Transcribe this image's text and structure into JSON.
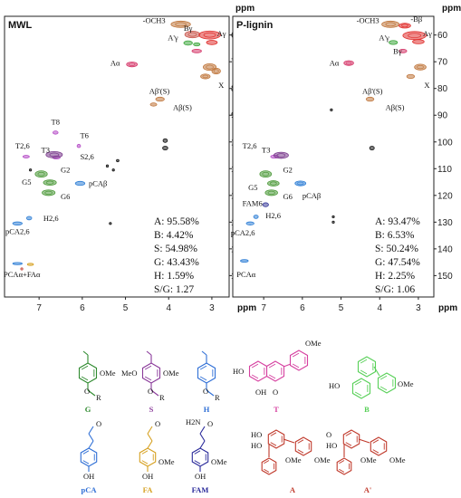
{
  "chart_data": [
    {
      "type": "scatter",
      "title": "MWL",
      "xlabel": "ppm",
      "ylabel": "ppm",
      "xlim": [
        7.8,
        2.6
      ],
      "ylim": [
        53,
        158
      ],
      "x_ticks": [
        "7",
        "6",
        "5",
        "4",
        "3"
      ],
      "y_ticks": [
        "60",
        "70",
        "80",
        "90",
        "100",
        "110",
        "120",
        "130",
        "140",
        "150"
      ],
      "x_tick_values": [
        7,
        6,
        5,
        4,
        3
      ],
      "y_tick_values": [
        60,
        70,
        80,
        90,
        100,
        110,
        120,
        130,
        140,
        150
      ],
      "peaks": [
        {
          "x": 3.72,
          "y": 56.0,
          "w": 0.45,
          "h": 2.4,
          "color": "#c0773d"
        },
        {
          "x": 3.45,
          "y": 59.8,
          "w": 0.35,
          "h": 2.5,
          "color": "#c9554a"
        },
        {
          "x": 3.05,
          "y": 60.0,
          "w": 0.5,
          "h": 3.0,
          "color": "#e0312f"
        },
        {
          "x": 3.0,
          "y": 62.8,
          "w": 0.25,
          "h": 1.6,
          "color": "#e0312f"
        },
        {
          "x": 3.55,
          "y": 63.0,
          "w": 0.2,
          "h": 1.6,
          "color": "#3aa63a"
        },
        {
          "x": 3.35,
          "y": 63.5,
          "w": 0.15,
          "h": 1.2,
          "color": "#3aa63a"
        },
        {
          "x": 3.35,
          "y": 66.0,
          "w": 0.22,
          "h": 1.3,
          "color": "#d63a6b"
        },
        {
          "x": 4.85,
          "y": 71.0,
          "w": 0.25,
          "h": 1.8,
          "color": "#d63a6b"
        },
        {
          "x": 3.05,
          "y": 72.0,
          "w": 0.3,
          "h": 2.5,
          "color": "#c0773d"
        },
        {
          "x": 3.15,
          "y": 75.5,
          "w": 0.22,
          "h": 1.8,
          "color": "#c0773d"
        },
        {
          "x": 2.9,
          "y": 73.5,
          "w": 0.2,
          "h": 2.2,
          "color": "#c0773d"
        },
        {
          "x": 4.2,
          "y": 84.0,
          "w": 0.2,
          "h": 1.5,
          "color": "#c0773d"
        },
        {
          "x": 4.35,
          "y": 86.0,
          "w": 0.15,
          "h": 1.2,
          "color": "#c0773d"
        },
        {
          "x": 6.62,
          "y": 96.5,
          "w": 0.12,
          "h": 1.2,
          "color": "#b44bc6"
        },
        {
          "x": 6.08,
          "y": 101.5,
          "w": 0.08,
          "h": 1.2,
          "color": "#b44bc6"
        },
        {
          "x": 7.3,
          "y": 105.5,
          "w": 0.15,
          "h": 1.0,
          "color": "#b44bc6"
        },
        {
          "x": 6.6,
          "y": 105.8,
          "w": 0.18,
          "h": 1.2,
          "color": "#b44bc6"
        },
        {
          "x": 6.65,
          "y": 104.8,
          "w": 0.38,
          "h": 2.4,
          "color": "#7a3b8c"
        },
        {
          "x": 6.95,
          "y": 112.0,
          "w": 0.28,
          "h": 2.4,
          "color": "#4f9a3c"
        },
        {
          "x": 6.75,
          "y": 115.2,
          "w": 0.3,
          "h": 2.0,
          "color": "#4f9a3c"
        },
        {
          "x": 6.78,
          "y": 119.0,
          "w": 0.3,
          "h": 2.1,
          "color": "#4f9a3c"
        },
        {
          "x": 6.05,
          "y": 115.5,
          "w": 0.22,
          "h": 1.5,
          "color": "#2f7fd6"
        },
        {
          "x": 7.23,
          "y": 128.5,
          "w": 0.12,
          "h": 1.3,
          "color": "#2f7fd6"
        },
        {
          "x": 7.5,
          "y": 130.5,
          "w": 0.22,
          "h": 1.2,
          "color": "#2f7fd6"
        },
        {
          "x": 7.5,
          "y": 145.5,
          "w": 0.22,
          "h": 0.7,
          "color": "#2f7fd6"
        },
        {
          "x": 7.2,
          "y": 145.8,
          "w": 0.14,
          "h": 0.7,
          "color": "#d6a020"
        },
        {
          "x": 7.4,
          "y": 147.5,
          "w": 0.05,
          "h": 0.6,
          "color": "#c9554a"
        },
        {
          "x": 4.08,
          "y": 99.5,
          "w": 0.1,
          "h": 1.4,
          "color": "#111111"
        },
        {
          "x": 4.08,
          "y": 102.3,
          "w": 0.12,
          "h": 1.4,
          "color": "#111111"
        },
        {
          "x": 5.18,
          "y": 107.0,
          "w": 0.06,
          "h": 0.9,
          "color": "#111111"
        },
        {
          "x": 5.42,
          "y": 109.0,
          "w": 0.05,
          "h": 0.9,
          "color": "#111111"
        },
        {
          "x": 5.28,
          "y": 110.5,
          "w": 0.05,
          "h": 0.7,
          "color": "#111111"
        },
        {
          "x": 7.2,
          "y": 110.5,
          "w": 0.05,
          "h": 0.6,
          "color": "#111111"
        },
        {
          "x": 5.35,
          "y": 130.5,
          "w": 0.04,
          "h": 0.6,
          "color": "#111111"
        }
      ],
      "labels": [
        {
          "text": "-OCH3",
          "x": 4.6,
          "y": 55.5
        },
        {
          "text": "Bγ",
          "x": 3.65,
          "y": 58.5
        },
        {
          "text": "Aγ",
          "x": 2.88,
          "y": 60.5
        },
        {
          "text": "A'γ",
          "x": 4.02,
          "y": 62.0
        },
        {
          "text": "Aα",
          "x": 5.35,
          "y": 71.5
        },
        {
          "text": "X",
          "x": 2.85,
          "y": 79.8
        },
        {
          "text": "Aβ'(S)",
          "x": 4.45,
          "y": 82.0
        },
        {
          "text": "Aβ(S)",
          "x": 3.9,
          "y": 88.0
        },
        {
          "text": "T8",
          "x": 6.72,
          "y": 93.5
        },
        {
          "text": "T6",
          "x": 6.05,
          "y": 98.5
        },
        {
          "text": "T2,6",
          "x": 7.55,
          "y": 102.5
        },
        {
          "text": "T3",
          "x": 6.95,
          "y": 104.0
        },
        {
          "text": "S2,6",
          "x": 6.05,
          "y": 106.5
        },
        {
          "text": "G2",
          "x": 6.5,
          "y": 111.5
        },
        {
          "text": "G5",
          "x": 7.4,
          "y": 116.0
        },
        {
          "text": "pCAβ",
          "x": 5.85,
          "y": 116.5
        },
        {
          "text": "G6",
          "x": 6.5,
          "y": 121.5
        },
        {
          "text": "H2,6",
          "x": 6.9,
          "y": 129.5
        },
        {
          "text": "pCA2,6",
          "x": 7.78,
          "y": 134.5
        },
        {
          "text": "PCAα+FAα",
          "x": 7.82,
          "y": 150.5
        }
      ],
      "stats": [
        "A: 95.58%",
        "B: 4.42%",
        "S: 54.98%",
        "G: 43.43%",
        "H: 1.59%",
        "S/G: 1.27"
      ]
    },
    {
      "type": "scatter",
      "title": "P-lignin",
      "xlabel": "ppm",
      "ylabel": "ppm",
      "xlim": [
        7.8,
        2.6
      ],
      "ylim": [
        53,
        158
      ],
      "x_ticks": [
        "7",
        "6",
        "5",
        "4",
        "3"
      ],
      "y_ticks": [
        "60",
        "70",
        "80",
        "90",
        "100",
        "110",
        "120",
        "130",
        "140",
        "150"
      ],
      "x_tick_values": [
        7,
        6,
        5,
        4,
        3
      ],
      "y_tick_values": [
        60,
        70,
        80,
        90,
        100,
        110,
        120,
        130,
        140,
        150
      ],
      "peaks": [
        {
          "x": 3.72,
          "y": 56.0,
          "w": 0.45,
          "h": 2.4,
          "color": "#c0773d"
        },
        {
          "x": 3.35,
          "y": 56.5,
          "w": 0.3,
          "h": 1.8,
          "color": "#e0312f"
        },
        {
          "x": 3.1,
          "y": 60.2,
          "w": 0.6,
          "h": 3.0,
          "color": "#e0312f"
        },
        {
          "x": 3.0,
          "y": 62.5,
          "w": 0.3,
          "h": 1.6,
          "color": "#e0312f"
        },
        {
          "x": 3.65,
          "y": 62.8,
          "w": 0.22,
          "h": 1.5,
          "color": "#3aa63a"
        },
        {
          "x": 3.4,
          "y": 66.0,
          "w": 0.2,
          "h": 1.3,
          "color": "#d63a6b"
        },
        {
          "x": 4.8,
          "y": 70.5,
          "w": 0.25,
          "h": 1.8,
          "color": "#d63a6b"
        },
        {
          "x": 2.95,
          "y": 72.0,
          "w": 0.3,
          "h": 2.2,
          "color": "#c0773d"
        },
        {
          "x": 3.2,
          "y": 75.5,
          "w": 0.2,
          "h": 1.5,
          "color": "#c0773d"
        },
        {
          "x": 4.25,
          "y": 84.0,
          "w": 0.2,
          "h": 1.5,
          "color": "#c0773d"
        },
        {
          "x": 6.72,
          "y": 105.5,
          "w": 0.2,
          "h": 1.2,
          "color": "#b44bc6"
        },
        {
          "x": 6.55,
          "y": 105.0,
          "w": 0.38,
          "h": 2.3,
          "color": "#7a3b8c"
        },
        {
          "x": 6.95,
          "y": 112.0,
          "w": 0.3,
          "h": 2.4,
          "color": "#4f9a3c"
        },
        {
          "x": 6.75,
          "y": 115.5,
          "w": 0.3,
          "h": 2.0,
          "color": "#4f9a3c"
        },
        {
          "x": 6.8,
          "y": 119.0,
          "w": 0.32,
          "h": 2.1,
          "color": "#4f9a3c"
        },
        {
          "x": 6.05,
          "y": 115.5,
          "w": 0.28,
          "h": 1.8,
          "color": "#2f7fd6"
        },
        {
          "x": 6.95,
          "y": 123.5,
          "w": 0.15,
          "h": 1.5,
          "color": "#3b3d9a"
        },
        {
          "x": 7.2,
          "y": 128.0,
          "w": 0.12,
          "h": 1.3,
          "color": "#2f7fd6"
        },
        {
          "x": 7.35,
          "y": 130.5,
          "w": 0.2,
          "h": 1.2,
          "color": "#2f7fd6"
        },
        {
          "x": 7.5,
          "y": 144.5,
          "w": 0.2,
          "h": 1.0,
          "color": "#2f7fd6"
        },
        {
          "x": 4.2,
          "y": 102.3,
          "w": 0.12,
          "h": 1.4,
          "color": "#111111"
        },
        {
          "x": 5.25,
          "y": 88.0,
          "w": 0.04,
          "h": 0.6,
          "color": "#111111"
        },
        {
          "x": 5.2,
          "y": 128.0,
          "w": 0.04,
          "h": 0.6,
          "color": "#111111"
        },
        {
          "x": 5.2,
          "y": 130.0,
          "w": 0.04,
          "h": 0.6,
          "color": "#111111"
        }
      ],
      "labels": [
        {
          "text": "-OCH3",
          "x": 4.6,
          "y": 55.5
        },
        {
          "text": "-Bβ",
          "x": 3.2,
          "y": 55.0
        },
        {
          "text": "Aγ",
          "x": 2.88,
          "y": 60.5
        },
        {
          "text": "A'γ",
          "x": 4.02,
          "y": 62.0
        },
        {
          "text": "Bγ",
          "x": 3.65,
          "y": 67.0
        },
        {
          "text": "Aα",
          "x": 5.3,
          "y": 71.5
        },
        {
          "text": "X",
          "x": 2.85,
          "y": 79.8
        },
        {
          "text": "Aβ'(S)",
          "x": 4.45,
          "y": 82.0
        },
        {
          "text": "Aβ(S)",
          "x": 3.85,
          "y": 88.0
        },
        {
          "text": "T2,6",
          "x": 7.55,
          "y": 102.5
        },
        {
          "text": "T3",
          "x": 7.05,
          "y": 104.0
        },
        {
          "text": "G2",
          "x": 6.5,
          "y": 111.5
        },
        {
          "text": "G5",
          "x": 7.4,
          "y": 118.0
        },
        {
          "text": "pCAβ",
          "x": 6.0,
          "y": 121.0
        },
        {
          "text": "FAM6",
          "x": 7.55,
          "y": 124.0
        },
        {
          "text": "G6",
          "x": 6.5,
          "y": 121.5
        },
        {
          "text": "H2,6",
          "x": 6.95,
          "y": 128.5
        },
        {
          "text": "pCA2,6",
          "x": 7.85,
          "y": 135.0
        },
        {
          "text": "PCAα",
          "x": 7.7,
          "y": 150.5
        }
      ],
      "stats": [
        "A: 93.47%",
        "B: 6.53%",
        "S: 50.24%",
        "G: 47.54%",
        "H: 2.25%",
        "S/G: 1.06"
      ]
    }
  ],
  "structures": [
    {
      "label": "G",
      "color": "#2f8a2f",
      "substituents": [
        "OMe",
        "R"
      ]
    },
    {
      "label": "S",
      "color": "#8a3a9a",
      "substituents": [
        "MeO",
        "OMe",
        "R"
      ]
    },
    {
      "label": "H",
      "color": "#2f6fd6",
      "substituents": [
        "R"
      ]
    },
    {
      "label": "T",
      "color": "#d640a0",
      "substituents": [
        "HO",
        "OH",
        "O",
        "OMe"
      ]
    },
    {
      "label": "B",
      "color": "#58d058",
      "substituents": [
        "HO",
        "OMe"
      ]
    },
    {
      "label": "pCA",
      "color": "#2f6fd6",
      "substituents": [
        "O",
        "OH"
      ]
    },
    {
      "label": "FA",
      "color": "#d6a020",
      "substituents": [
        "O",
        "OMe",
        "OH"
      ]
    },
    {
      "label": "FAM",
      "color": "#2a2a9a",
      "substituents": [
        "H2N",
        "O",
        "OMe",
        "OH"
      ]
    },
    {
      "label": "A",
      "color": "#c0392b",
      "substituents": [
        "HO",
        "HO",
        "OMe",
        "OMe"
      ]
    },
    {
      "label": "A'",
      "color": "#c0392b",
      "substituents": [
        "O",
        "HO",
        "OMe",
        "OMe"
      ]
    }
  ]
}
